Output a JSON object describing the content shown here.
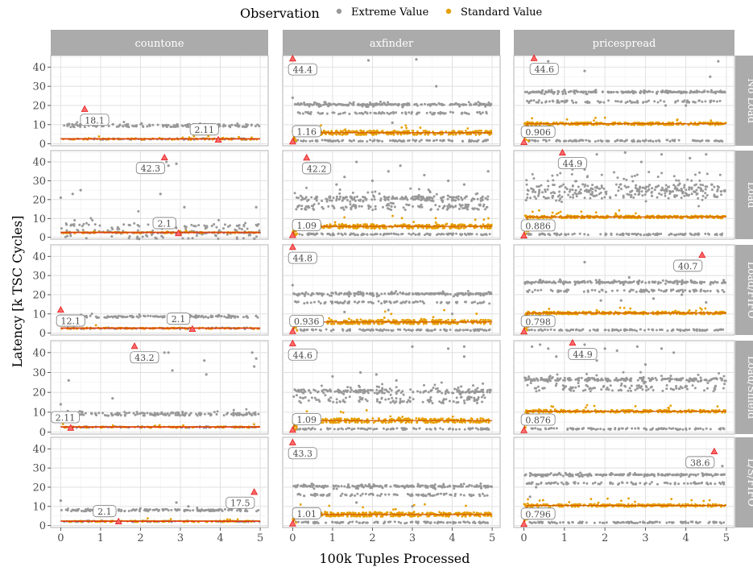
{
  "chart_data": {
    "type": "scatter",
    "legend": {
      "title": "Observation",
      "position": "top",
      "entries": [
        {
          "name": "Extreme Value",
          "color": "#999999"
        },
        {
          "name": "Standard Value",
          "color": "#E69F00"
        }
      ]
    },
    "xlabel": "100k Tuples Processed",
    "ylabel": "Latency [k TSC Cycles]",
    "xlim": [
      -0.25,
      5.2
    ],
    "ylim": [
      -1,
      46
    ],
    "x_ticks": [
      "0",
      "1",
      "2",
      "3",
      "4",
      "5"
    ],
    "y_ticks": [
      "0",
      "10",
      "20",
      "30",
      "40"
    ],
    "grid": true,
    "columns": [
      "countone",
      "axfinder",
      "pricespread"
    ],
    "rows": [
      "No Load",
      "Load",
      "Load/FIFO",
      "Load/Shield",
      "L/S/FIFO"
    ],
    "colors": {
      "extreme": "#999999",
      "standard": "#E69F00",
      "trend": "#D55E00",
      "marker": "#E41A1C",
      "strip": "#ababab"
    },
    "panels": [
      [
        {
          "ext_base": 9.5,
          "ext_spread": 1.5,
          "std_base": 2.5,
          "outliers": [],
          "max": {
            "x": 0.6,
            "y": 18.1,
            "label": "18.1"
          },
          "min": {
            "x": 3.95,
            "y": 2.11,
            "label": "2.11"
          }
        },
        {
          "ext_base": 3,
          "ext_spread": 8,
          "std_base": 2.5,
          "outliers": [
            [
              0,
              21
            ],
            [
              0.3,
              23
            ],
            [
              0.5,
              25
            ],
            [
              2.7,
              38
            ],
            [
              2.9,
              39
            ],
            [
              2.65,
              40
            ],
            [
              2.5,
              23
            ],
            [
              3.1,
              16
            ],
            [
              4.9,
              16
            ]
          ],
          "max": {
            "x": 2.6,
            "y": 42.3,
            "label": "42.3"
          },
          "min": {
            "x": 2.95,
            "y": 2.1,
            "label": "2.1"
          }
        },
        {
          "ext_base": 8.5,
          "ext_spread": 1,
          "std_base": 2.5,
          "outliers": [],
          "max": {
            "x": 0.0,
            "y": 12.1,
            "label": "12.1"
          },
          "min": {
            "x": 3.3,
            "y": 2.1,
            "label": "2.1"
          }
        },
        {
          "ext_base": 9,
          "ext_spread": 1.5,
          "std_base": 2.5,
          "outliers": [
            [
              0,
              14
            ],
            [
              0.2,
              26
            ],
            [
              1.3,
              17
            ],
            [
              2.6,
              40
            ],
            [
              2.7,
              40
            ],
            [
              2.8,
              31
            ],
            [
              3.6,
              36
            ],
            [
              3.65,
              29
            ],
            [
              4.8,
              40
            ],
            [
              4.85,
              33
            ],
            [
              4.9,
              37
            ]
          ],
          "max": {
            "x": 1.85,
            "y": 43.2,
            "label": "43.2"
          },
          "min": {
            "x": 0.25,
            "y": 2.11,
            "label": "2.11"
          }
        },
        {
          "ext_base": 8,
          "ext_spread": 1,
          "std_base": 2.2,
          "outliers": [
            [
              0,
              13
            ],
            [
              2.9,
              12
            ],
            [
              3.2,
              10
            ]
          ],
          "max": {
            "x": 4.85,
            "y": 17.5,
            "label": "17.5"
          },
          "min": {
            "x": 1.45,
            "y": 2.1,
            "label": "2.1"
          }
        }
      ],
      [
        {
          "ext_base": 20.5,
          "ext_spread": 1,
          "std_base": 5.8,
          "outliers": [
            [
              0,
              24
            ],
            [
              1.9,
              43.5
            ],
            [
              3.1,
              44
            ],
            [
              3.6,
              30
            ],
            [
              2.5,
              11
            ]
          ],
          "max": {
            "x": 0.0,
            "y": 44.4,
            "label": "44.4"
          },
          "min": {
            "x": 0.0,
            "y": 1.16,
            "label": "1.16"
          }
        },
        {
          "ext_base": 20.5,
          "ext_spread": 4,
          "std_base": 5.8,
          "outliers": [
            [
              0.8,
              38
            ],
            [
              1.6,
              40
            ],
            [
              2.4,
              35
            ],
            [
              2.7,
              38
            ],
            [
              1.3,
              32
            ],
            [
              3.9,
              30
            ],
            [
              4.9,
              35
            ],
            [
              1.1,
              28
            ],
            [
              2.0,
              30
            ],
            [
              3.3,
              33
            ],
            [
              4.3,
              28
            ]
          ],
          "max": {
            "x": 0.35,
            "y": 42.2,
            "label": "42.2"
          },
          "min": {
            "x": 0.0,
            "y": 1.09,
            "label": "1.09"
          }
        },
        {
          "ext_base": 20.5,
          "ext_spread": 1,
          "std_base": 5.8,
          "outliers": [
            [
              0,
              25
            ],
            [
              1.3,
              11
            ],
            [
              2.4,
              12
            ],
            [
              4.0,
              10
            ]
          ],
          "max": {
            "x": 0.0,
            "y": 44.8,
            "label": "44.8"
          },
          "min": {
            "x": 0.0,
            "y": 0.936,
            "label": "0.936"
          }
        },
        {
          "ext_base": 20.5,
          "ext_spread": 3,
          "std_base": 5.8,
          "outliers": [
            [
              0.5,
              37
            ],
            [
              0.6,
              40
            ],
            [
              1.7,
              30
            ],
            [
              2.1,
              29
            ],
            [
              3.0,
              43
            ],
            [
              3.9,
              42
            ],
            [
              4.3,
              43
            ],
            [
              4.3,
              38
            ],
            [
              1.0,
              28
            ],
            [
              2.6,
              26
            ]
          ],
          "max": {
            "x": 0.0,
            "y": 44.6,
            "label": "44.6"
          },
          "min": {
            "x": 0.0,
            "y": 1.09,
            "label": "1.09"
          }
        },
        {
          "ext_base": 20.5,
          "ext_spread": 1,
          "std_base": 5.8,
          "outliers": [
            [
              1.6,
              12
            ],
            [
              3.0,
              10
            ]
          ],
          "max": {
            "x": 0.0,
            "y": 43.3,
            "label": "43.3"
          },
          "min": {
            "x": 0.0,
            "y": 1.01,
            "label": "1.01"
          }
        }
      ],
      [
        {
          "ext_base": 27,
          "ext_spread": 0.8,
          "std_base": 10.5,
          "outliers": [
            [
              0.6,
              43
            ],
            [
              1.5,
              38
            ],
            [
              4.6,
              35
            ],
            [
              4.8,
              43
            ],
            [
              3.5,
              20
            ],
            [
              4.0,
              20
            ],
            [
              1.0,
              28
            ]
          ],
          "max": {
            "x": 0.25,
            "y": 44.6,
            "label": "44.6"
          },
          "min": {
            "x": 0.0,
            "y": 0.906,
            "label": "0.906"
          }
        },
        {
          "ext_base": 26,
          "ext_spread": 7,
          "std_base": 10.8,
          "outliers": [
            [
              1.8,
              44
            ],
            [
              2.5,
              45
            ],
            [
              3.4,
              44
            ],
            [
              4.5,
              44
            ],
            [
              1.5,
              36
            ],
            [
              2.9,
              40
            ],
            [
              4.1,
              42
            ]
          ],
          "max": {
            "x": 0.95,
            "y": 44.9,
            "label": "44.9"
          },
          "min": {
            "x": 0.0,
            "y": 0.886,
            "label": "0.886"
          }
        },
        {
          "ext_base": 26.5,
          "ext_spread": 1,
          "std_base": 10.5,
          "outliers": [
            [
              1.5,
              37
            ],
            [
              2.6,
              29
            ],
            [
              3.2,
              18
            ],
            [
              1.9,
              17
            ],
            [
              2.4,
              17
            ],
            [
              3.9,
              20
            ],
            [
              4.5,
              16
            ]
          ],
          "max": {
            "x": 4.4,
            "y": 40.7,
            "label": "40.7"
          },
          "min": {
            "x": 0.0,
            "y": 0.798,
            "label": "0.798"
          }
        },
        {
          "ext_base": 26.5,
          "ext_spread": 2.5,
          "std_base": 10.5,
          "outliers": [
            [
              0.2,
              43
            ],
            [
              0.4,
              44
            ],
            [
              0.6,
              42
            ],
            [
              1.5,
              44
            ],
            [
              2.0,
              42
            ],
            [
              2.3,
              41
            ],
            [
              2.8,
              43
            ],
            [
              3.4,
              42
            ],
            [
              3.7,
              40
            ],
            [
              0.8,
              38
            ],
            [
              1.8,
              36
            ],
            [
              3.0,
              34
            ]
          ],
          "max": {
            "x": 1.2,
            "y": 44.9,
            "label": "44.9"
          },
          "min": {
            "x": 0.0,
            "y": 0.876,
            "label": "0.876"
          }
        },
        {
          "ext_base": 26.5,
          "ext_spread": 0.8,
          "std_base": 10.5,
          "outliers": [
            [
              0.1,
              22
            ],
            [
              0.15,
              15
            ],
            [
              4.9,
              31
            ],
            [
              0.3,
              20
            ]
          ],
          "max": {
            "x": 4.7,
            "y": 38.6,
            "label": "38.6"
          },
          "min": {
            "x": 0.0,
            "y": 0.796,
            "label": "0.796"
          }
        }
      ]
    ]
  }
}
